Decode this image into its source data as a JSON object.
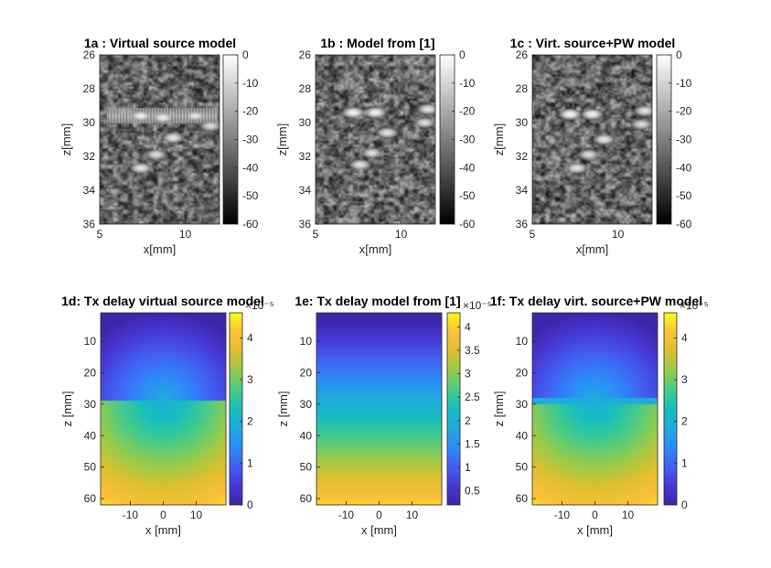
{
  "chart_data": [
    {
      "id": "1a",
      "type": "heatmap",
      "title": "1a : Virtual source model",
      "xlabel": "x[mm]",
      "ylabel": "z[mm]",
      "xlim": [
        5,
        12
      ],
      "ylim": [
        26,
        36
      ],
      "xticks": [
        5,
        10
      ],
      "yticks": [
        26,
        28,
        30,
        32,
        34,
        36
      ],
      "y_reversed": true,
      "colormap": "gray",
      "clim": [
        -60,
        0
      ],
      "colorbar_ticks": [
        0,
        -10,
        -20,
        -30,
        -40,
        -50,
        -60
      ],
      "highlights": [
        {
          "x": 7.4,
          "z": 29.6,
          "level": -4
        },
        {
          "x": 8.7,
          "z": 29.7,
          "level": -4
        },
        {
          "x": 10.6,
          "z": 29.6,
          "level": -6
        },
        {
          "x": 11.5,
          "z": 30.2,
          "level": -8
        },
        {
          "x": 9.3,
          "z": 30.9,
          "level": -6
        },
        {
          "x": 8.3,
          "z": 31.9,
          "level": -8
        },
        {
          "x": 7.4,
          "z": 32.7,
          "level": -6
        }
      ],
      "artifact_band_z": 29.6
    },
    {
      "id": "1b",
      "type": "heatmap",
      "title": "1b : Model from [1]",
      "xlabel": "x[mm]",
      "ylabel": "z[mm]",
      "xlim": [
        5,
        12
      ],
      "ylim": [
        26,
        36
      ],
      "xticks": [
        5,
        10
      ],
      "yticks": [
        26,
        28,
        30,
        32,
        34,
        36
      ],
      "y_reversed": true,
      "colormap": "gray",
      "clim": [
        -60,
        0
      ],
      "colorbar_ticks": [
        0,
        -10,
        -20,
        -30,
        -40,
        -50,
        -60
      ],
      "highlights": [
        {
          "x": 7.2,
          "z": 29.4,
          "level": -2
        },
        {
          "x": 8.5,
          "z": 29.4,
          "level": -3
        },
        {
          "x": 11.6,
          "z": 29.2,
          "level": -6
        },
        {
          "x": 11.4,
          "z": 30.0,
          "level": -8
        },
        {
          "x": 9.2,
          "z": 30.6,
          "level": -6
        },
        {
          "x": 8.3,
          "z": 31.8,
          "level": -8
        },
        {
          "x": 7.6,
          "z": 32.5,
          "level": -6
        }
      ]
    },
    {
      "id": "1c",
      "type": "heatmap",
      "title": "1c : Virt. source+PW model",
      "xlabel": "x[mm]",
      "ylabel": "z[mm]",
      "xlim": [
        5,
        12
      ],
      "ylim": [
        26,
        36
      ],
      "xticks": [
        5,
        10
      ],
      "yticks": [
        26,
        28,
        30,
        32,
        34,
        36
      ],
      "y_reversed": true,
      "colormap": "gray",
      "clim": [
        -60,
        0
      ],
      "colorbar_ticks": [
        0,
        -10,
        -20,
        -30,
        -40,
        -50,
        -60
      ],
      "highlights": [
        {
          "x": 7.2,
          "z": 29.5,
          "level": -2
        },
        {
          "x": 8.5,
          "z": 29.5,
          "level": -3
        },
        {
          "x": 11.6,
          "z": 29.3,
          "level": -6
        },
        {
          "x": 11.4,
          "z": 30.1,
          "level": -8
        },
        {
          "x": 9.2,
          "z": 31.0,
          "level": -6
        },
        {
          "x": 8.3,
          "z": 31.9,
          "level": -8
        },
        {
          "x": 7.6,
          "z": 32.7,
          "level": -6
        }
      ]
    },
    {
      "id": "1d",
      "type": "heatmap",
      "title": "1d: Tx delay virtual source model",
      "xlabel": "x [mm]",
      "ylabel": "z [mm]",
      "xlim": [
        -19,
        19
      ],
      "ylim": [
        1,
        62
      ],
      "xticks": [
        -10,
        0,
        10
      ],
      "yticks": [
        10,
        20,
        30,
        40,
        50,
        60
      ],
      "y_reversed": true,
      "colormap": "parula",
      "clim": [
        0,
        4.6
      ],
      "colorbar_ticks": [
        0,
        1,
        2,
        3,
        4
      ],
      "colorbar_exponent": "×10⁻⁵",
      "model": "virtual_source",
      "focus_z": 29
    },
    {
      "id": "1e",
      "type": "heatmap",
      "title": "1e: Tx delay model from [1]",
      "xlabel": "x [mm]",
      "ylabel": "z [mm]",
      "xlim": [
        -19,
        19
      ],
      "ylim": [
        1,
        62
      ],
      "xticks": [
        -10,
        0,
        10
      ],
      "yticks": [
        10,
        20,
        30,
        40,
        50,
        60
      ],
      "y_reversed": true,
      "colormap": "parula",
      "clim": [
        0.2,
        4.3
      ],
      "colorbar_ticks": [
        0.5,
        1,
        1.5,
        2,
        2.5,
        3,
        3.5,
        4
      ],
      "colorbar_exponent": "×10⁻⁵",
      "model": "plane_wave"
    },
    {
      "id": "1f",
      "type": "heatmap",
      "title": "1f: Tx delay virt. source+PW model",
      "xlabel": "x [mm]",
      "ylabel": "z [mm]",
      "xlim": [
        -19,
        19
      ],
      "ylim": [
        1,
        62
      ],
      "xticks": [
        -10,
        0,
        10
      ],
      "yticks": [
        10,
        20,
        30,
        40,
        50,
        60
      ],
      "y_reversed": true,
      "colormap": "parula",
      "clim": [
        0,
        4.6
      ],
      "colorbar_ticks": [
        0,
        1,
        2,
        3,
        4
      ],
      "colorbar_exponent": "×10⁻⁵",
      "model": "virtual_source_pw",
      "focus_z": 29
    }
  ]
}
